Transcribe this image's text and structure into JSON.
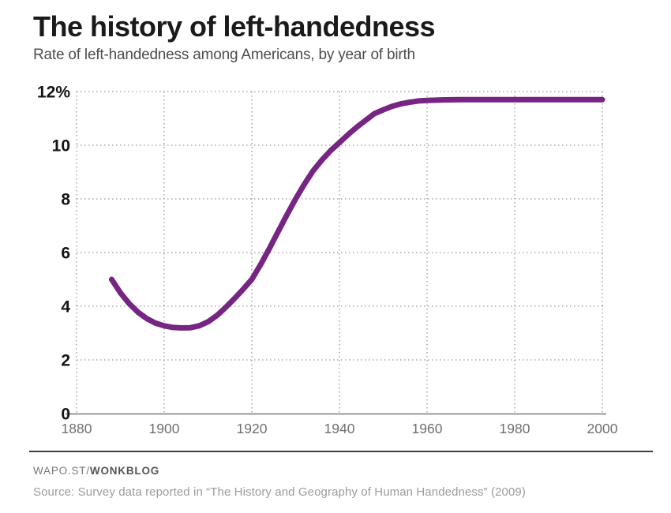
{
  "header": {
    "title": "The history of left-handedness",
    "subtitle": "Rate of left-handedness among Americans, by year of birth"
  },
  "footer": {
    "branding_prefix": "WAPO.ST/",
    "branding_bold": "WONKBLOG",
    "source": "Source: Survey data reported in “The History and Geography of Human Handedness” (2009)"
  },
  "colors": {
    "line": "#772583",
    "grid_dots": "#999999",
    "axis_line": "#787878",
    "title": "#1a1a1a",
    "subtitle": "#4d4d4d",
    "y_tick_text": "#141414",
    "x_tick_text": "#6f6f6f",
    "footer_rule": "#3e3e3e",
    "branding": "#7a7a7a",
    "source_text": "#9c9c9c"
  },
  "chart_data": {
    "type": "line",
    "title": "The history of left-handedness",
    "subtitle": "Rate of left-handedness among Americans, by year of birth",
    "xlabel": "",
    "ylabel": "",
    "xlim": [
      1880,
      2000
    ],
    "ylim": [
      0,
      12
    ],
    "xticks": [
      1880,
      1900,
      1920,
      1940,
      1960,
      1980,
      2000
    ],
    "yticks": [
      0,
      2,
      4,
      6,
      8,
      10,
      12
    ],
    "ytick_labels": [
      "0",
      "2",
      "4",
      "6",
      "8",
      "10",
      "12%"
    ],
    "grid": "dotted",
    "legend": false,
    "x": [
      1888,
      1890,
      1892,
      1894,
      1896,
      1898,
      1900,
      1902,
      1904,
      1906,
      1908,
      1910,
      1912,
      1914,
      1916,
      1918,
      1920,
      1922,
      1924,
      1926,
      1928,
      1930,
      1932,
      1934,
      1936,
      1938,
      1940,
      1942,
      1944,
      1946,
      1948,
      1950,
      1952,
      1954,
      1956,
      1958,
      1960,
      1964,
      1968,
      1972,
      1976,
      1980,
      1985,
      1990,
      1995,
      2000
    ],
    "series": [
      {
        "name": "Rate of left-handedness (%)",
        "values": [
          5.0,
          4.5,
          4.1,
          3.78,
          3.54,
          3.37,
          3.27,
          3.21,
          3.19,
          3.2,
          3.27,
          3.42,
          3.65,
          3.95,
          4.28,
          4.63,
          5.0,
          5.55,
          6.15,
          6.78,
          7.4,
          8.0,
          8.55,
          9.05,
          9.45,
          9.8,
          10.1,
          10.4,
          10.68,
          10.93,
          11.18,
          11.32,
          11.45,
          11.54,
          11.6,
          11.65,
          11.67,
          11.69,
          11.7,
          11.7,
          11.7,
          11.7,
          11.7,
          11.7,
          11.7,
          11.7
        ]
      }
    ]
  }
}
